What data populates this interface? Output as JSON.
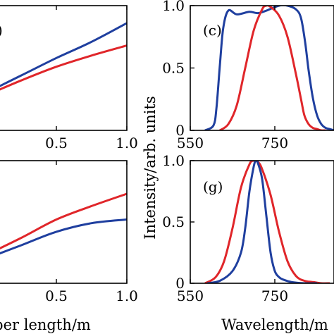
{
  "colors": {
    "blue": "#1f3f9f",
    "red": "#e0262a",
    "axis": "#000000"
  },
  "chart_data": [
    {
      "id": "top-left",
      "type": "line",
      "panel_label": ")",
      "xlabel": "",
      "ylabel": "",
      "xlim": [
        0.0,
        1.0
      ],
      "ylim": [
        0.0,
        1.0
      ],
      "xticks": [
        "0.5",
        "1.0"
      ],
      "xtick_values": [
        0.5,
        1.0
      ],
      "series": [
        {
          "color": "blue",
          "x": [
            0.0,
            0.25,
            0.5,
            0.75,
            1.0
          ],
          "y": [
            0.3,
            0.44,
            0.58,
            0.71,
            0.86
          ]
        },
        {
          "color": "red",
          "x": [
            0.0,
            0.25,
            0.5,
            0.75,
            1.0
          ],
          "y": [
            0.28,
            0.4,
            0.51,
            0.6,
            0.68
          ]
        }
      ]
    },
    {
      "id": "bottom-left",
      "type": "line",
      "panel_label": "",
      "xlabel": "ber length/m",
      "ylabel": "",
      "xlim": [
        0.0,
        1.0
      ],
      "ylim": [
        0.0,
        1.0
      ],
      "xticks": [
        "0.5",
        "1.0"
      ],
      "xtick_values": [
        0.5,
        1.0
      ],
      "series": [
        {
          "color": "red",
          "x": [
            0.0,
            0.25,
            0.5,
            0.75,
            1.0
          ],
          "y": [
            0.23,
            0.37,
            0.52,
            0.63,
            0.73
          ]
        },
        {
          "color": "blue",
          "x": [
            0.0,
            0.25,
            0.5,
            0.75,
            1.0
          ],
          "y": [
            0.2,
            0.31,
            0.42,
            0.49,
            0.52
          ]
        }
      ]
    },
    {
      "id": "panel-c",
      "type": "line",
      "panel_label": "(c)",
      "xlabel": "",
      "ylabel": "",
      "xlim": [
        550,
        890
      ],
      "ylim": [
        0,
        1.0
      ],
      "xticks": [
        "550",
        "750"
      ],
      "xtick_values": [
        550,
        750
      ],
      "yticks": [
        "0",
        "0.5",
        "1.0"
      ],
      "ytick_values": [
        0,
        0.5,
        1.0
      ],
      "series": [
        {
          "color": "blue",
          "x": [
            585,
            605,
            612,
            620,
            628,
            640,
            660,
            690,
            710,
            730,
            760,
            780,
            800,
            812,
            822,
            830,
            840,
            850,
            860,
            870,
            880,
            890
          ],
          "y": [
            0.0,
            0.04,
            0.18,
            0.52,
            0.82,
            0.96,
            0.93,
            0.95,
            0.94,
            0.96,
            1.0,
            1.0,
            0.97,
            0.9,
            0.7,
            0.48,
            0.26,
            0.12,
            0.05,
            0.02,
            0.01,
            0.0
          ]
        },
        {
          "color": "red",
          "x": [
            620,
            640,
            660,
            680,
            700,
            720,
            730,
            740,
            760,
            780,
            800,
            812,
            820,
            830,
            840,
            850,
            860,
            870
          ],
          "y": [
            0.0,
            0.05,
            0.2,
            0.5,
            0.8,
            0.97,
            1.0,
            0.99,
            0.92,
            0.75,
            0.45,
            0.25,
            0.12,
            0.05,
            0.02,
            0.01,
            0.0,
            0.0
          ]
        }
      ]
    },
    {
      "id": "panel-g",
      "type": "line",
      "panel_label": "(g)",
      "xlabel": "Wavelength/m",
      "ylabel": "",
      "xlim": [
        550,
        890
      ],
      "ylim": [
        0,
        1.0
      ],
      "xticks": [
        "550",
        "750"
      ],
      "xtick_values": [
        550,
        750
      ],
      "yticks": [
        "0",
        "0.5",
        "1.0"
      ],
      "ytick_values": [
        0,
        0.5,
        1.0
      ],
      "series": [
        {
          "color": "red",
          "x": [
            585,
            610,
            630,
            650,
            670,
            690,
            700,
            710,
            720,
            740,
            760,
            780,
            800,
            820,
            840,
            860,
            880
          ],
          "y": [
            0.0,
            0.05,
            0.18,
            0.45,
            0.78,
            0.97,
            1.0,
            0.99,
            0.93,
            0.72,
            0.42,
            0.18,
            0.06,
            0.02,
            0.01,
            0.0,
            0.0
          ]
        },
        {
          "color": "blue",
          "x": [
            590,
            620,
            650,
            670,
            680,
            690,
            700,
            705,
            710,
            720,
            730,
            740,
            750,
            760,
            770,
            790,
            820,
            850
          ],
          "y": [
            0.0,
            0.02,
            0.1,
            0.25,
            0.45,
            0.75,
            0.95,
            1.0,
            0.98,
            0.85,
            0.55,
            0.25,
            0.1,
            0.05,
            0.03,
            0.01,
            0.0,
            0.0
          ]
        }
      ]
    }
  ],
  "shared_ylabel": "Intensity/arb. units"
}
